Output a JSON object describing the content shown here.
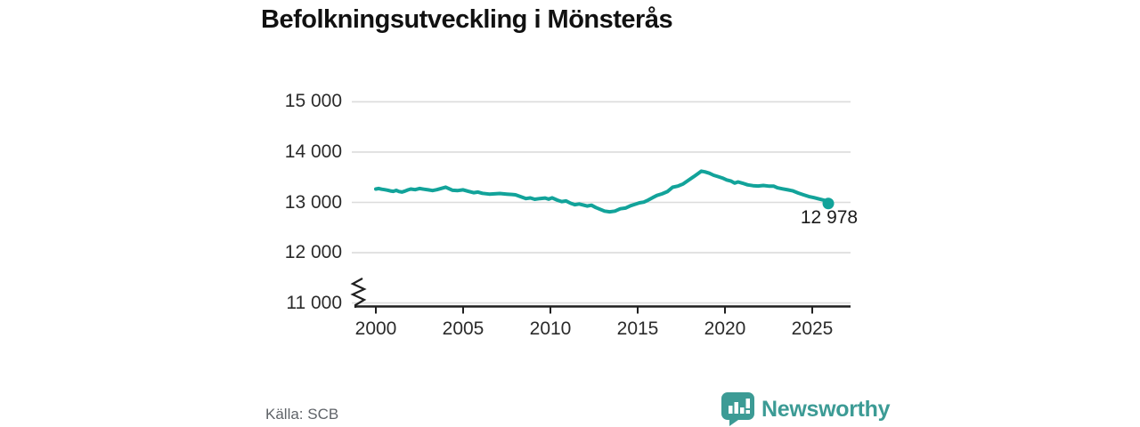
{
  "title": "Befolkningsutveckling i Mönsterås",
  "source": "Källa: SCB",
  "brand": {
    "name": "Newsworthy",
    "icon": "bar-chart-speech-bubble-icon",
    "color": "#3c9b95"
  },
  "colors": {
    "line": "#12a39a",
    "grid": "#dcdcdc",
    "axis": "#1f1f1f",
    "tick_text": "#2b2b2b",
    "muted_text": "#5f6368"
  },
  "chart_data": {
    "type": "line",
    "title": "Befolkningsutveckling i Mönsterås",
    "xlabel": "",
    "ylabel": "",
    "x_ticks": [
      2000,
      2005,
      2010,
      2015,
      2020,
      2025
    ],
    "x_tick_labels": [
      "2000",
      "2005",
      "2010",
      "2015",
      "2020",
      "2025"
    ],
    "y_ticks": [
      11000,
      12000,
      13000,
      14000,
      15000
    ],
    "y_tick_labels": [
      "11 000",
      "12 000",
      "13 000",
      "14 000",
      "15 000"
    ],
    "ylim": [
      11000,
      15000
    ],
    "xlim": [
      1998.6,
      2027.2
    ],
    "axis_break_at_bottom": true,
    "grid": "horizontal",
    "legend": "none",
    "last_point": {
      "x": 2025.92,
      "y": 12978,
      "label": "12 978"
    },
    "series": [
      {
        "name": "Befolkning",
        "points": [
          [
            2000.0,
            13265
          ],
          [
            2000.17,
            13276
          ],
          [
            2000.33,
            13262
          ],
          [
            2000.5,
            13252
          ],
          [
            2000.67,
            13242
          ],
          [
            2000.83,
            13228
          ],
          [
            2001.0,
            13220
          ],
          [
            2001.17,
            13238
          ],
          [
            2001.33,
            13215
          ],
          [
            2001.5,
            13205
          ],
          [
            2001.67,
            13225
          ],
          [
            2001.83,
            13248
          ],
          [
            2002.0,
            13265
          ],
          [
            2002.25,
            13252
          ],
          [
            2002.5,
            13276
          ],
          [
            2002.75,
            13262
          ],
          [
            2003.0,
            13250
          ],
          [
            2003.25,
            13235
          ],
          [
            2003.5,
            13252
          ],
          [
            2003.75,
            13278
          ],
          [
            2004.0,
            13302
          ],
          [
            2004.2,
            13270
          ],
          [
            2004.4,
            13240
          ],
          [
            2004.7,
            13235
          ],
          [
            2005.0,
            13250
          ],
          [
            2005.3,
            13220
          ],
          [
            2005.6,
            13193
          ],
          [
            2005.85,
            13206
          ],
          [
            2006.1,
            13180
          ],
          [
            2006.5,
            13165
          ],
          [
            2006.8,
            13170
          ],
          [
            2007.1,
            13176
          ],
          [
            2007.5,
            13164
          ],
          [
            2007.8,
            13158
          ],
          [
            2008.0,
            13150
          ],
          [
            2008.3,
            13114
          ],
          [
            2008.6,
            13076
          ],
          [
            2008.85,
            13088
          ],
          [
            2009.1,
            13062
          ],
          [
            2009.4,
            13076
          ],
          [
            2009.7,
            13086
          ],
          [
            2009.9,
            13064
          ],
          [
            2010.1,
            13090
          ],
          [
            2010.4,
            13044
          ],
          [
            2010.65,
            13016
          ],
          [
            2010.9,
            13028
          ],
          [
            2011.15,
            12984
          ],
          [
            2011.4,
            12954
          ],
          [
            2011.65,
            12968
          ],
          [
            2011.9,
            12946
          ],
          [
            2012.1,
            12928
          ],
          [
            2012.35,
            12944
          ],
          [
            2012.6,
            12898
          ],
          [
            2012.85,
            12862
          ],
          [
            2013.1,
            12826
          ],
          [
            2013.4,
            12812
          ],
          [
            2013.7,
            12826
          ],
          [
            2014.0,
            12872
          ],
          [
            2014.3,
            12886
          ],
          [
            2014.6,
            12934
          ],
          [
            2014.85,
            12962
          ],
          [
            2015.1,
            12992
          ],
          [
            2015.35,
            13006
          ],
          [
            2015.6,
            13046
          ],
          [
            2015.85,
            13094
          ],
          [
            2016.1,
            13138
          ],
          [
            2016.4,
            13170
          ],
          [
            2016.7,
            13214
          ],
          [
            2017.0,
            13300
          ],
          [
            2017.3,
            13324
          ],
          [
            2017.6,
            13366
          ],
          [
            2017.9,
            13438
          ],
          [
            2018.2,
            13510
          ],
          [
            2018.45,
            13572
          ],
          [
            2018.65,
            13620
          ],
          [
            2018.85,
            13606
          ],
          [
            2019.1,
            13580
          ],
          [
            2019.35,
            13540
          ],
          [
            2019.6,
            13512
          ],
          [
            2019.85,
            13484
          ],
          [
            2020.1,
            13446
          ],
          [
            2020.35,
            13422
          ],
          [
            2020.55,
            13384
          ],
          [
            2020.75,
            13406
          ],
          [
            2021.0,
            13382
          ],
          [
            2021.3,
            13348
          ],
          [
            2021.6,
            13332
          ],
          [
            2021.9,
            13326
          ],
          [
            2022.2,
            13336
          ],
          [
            2022.5,
            13324
          ],
          [
            2022.8,
            13322
          ],
          [
            2023.0,
            13290
          ],
          [
            2023.3,
            13268
          ],
          [
            2023.6,
            13250
          ],
          [
            2023.9,
            13228
          ],
          [
            2024.2,
            13186
          ],
          [
            2024.5,
            13150
          ],
          [
            2024.8,
            13116
          ],
          [
            2025.1,
            13094
          ],
          [
            2025.4,
            13068
          ],
          [
            2025.7,
            13040
          ],
          [
            2025.92,
            12978
          ]
        ]
      }
    ]
  }
}
